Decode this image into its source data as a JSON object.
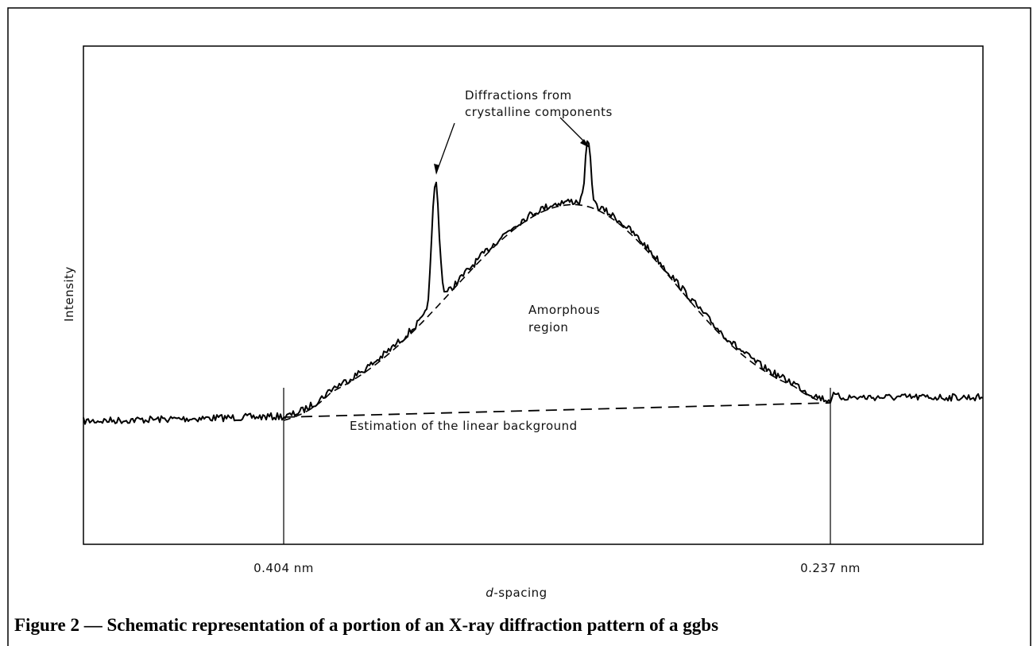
{
  "figure": {
    "y_axis_label": "Intensity",
    "x_axis_label": {
      "symbol": "d",
      "text": "-spacing"
    },
    "x_ticks": [
      "0.404 nm",
      "0.237 nm"
    ],
    "annotations": {
      "peaks": [
        "Diffractions from",
        "crystalline components"
      ],
      "amorphous": [
        "Amorphous",
        "region"
      ],
      "background": "Estimation of the linear background"
    },
    "caption": "Figure 2 — Schematic representation of a portion of an X-ray diffraction pattern of a ggbs"
  }
}
